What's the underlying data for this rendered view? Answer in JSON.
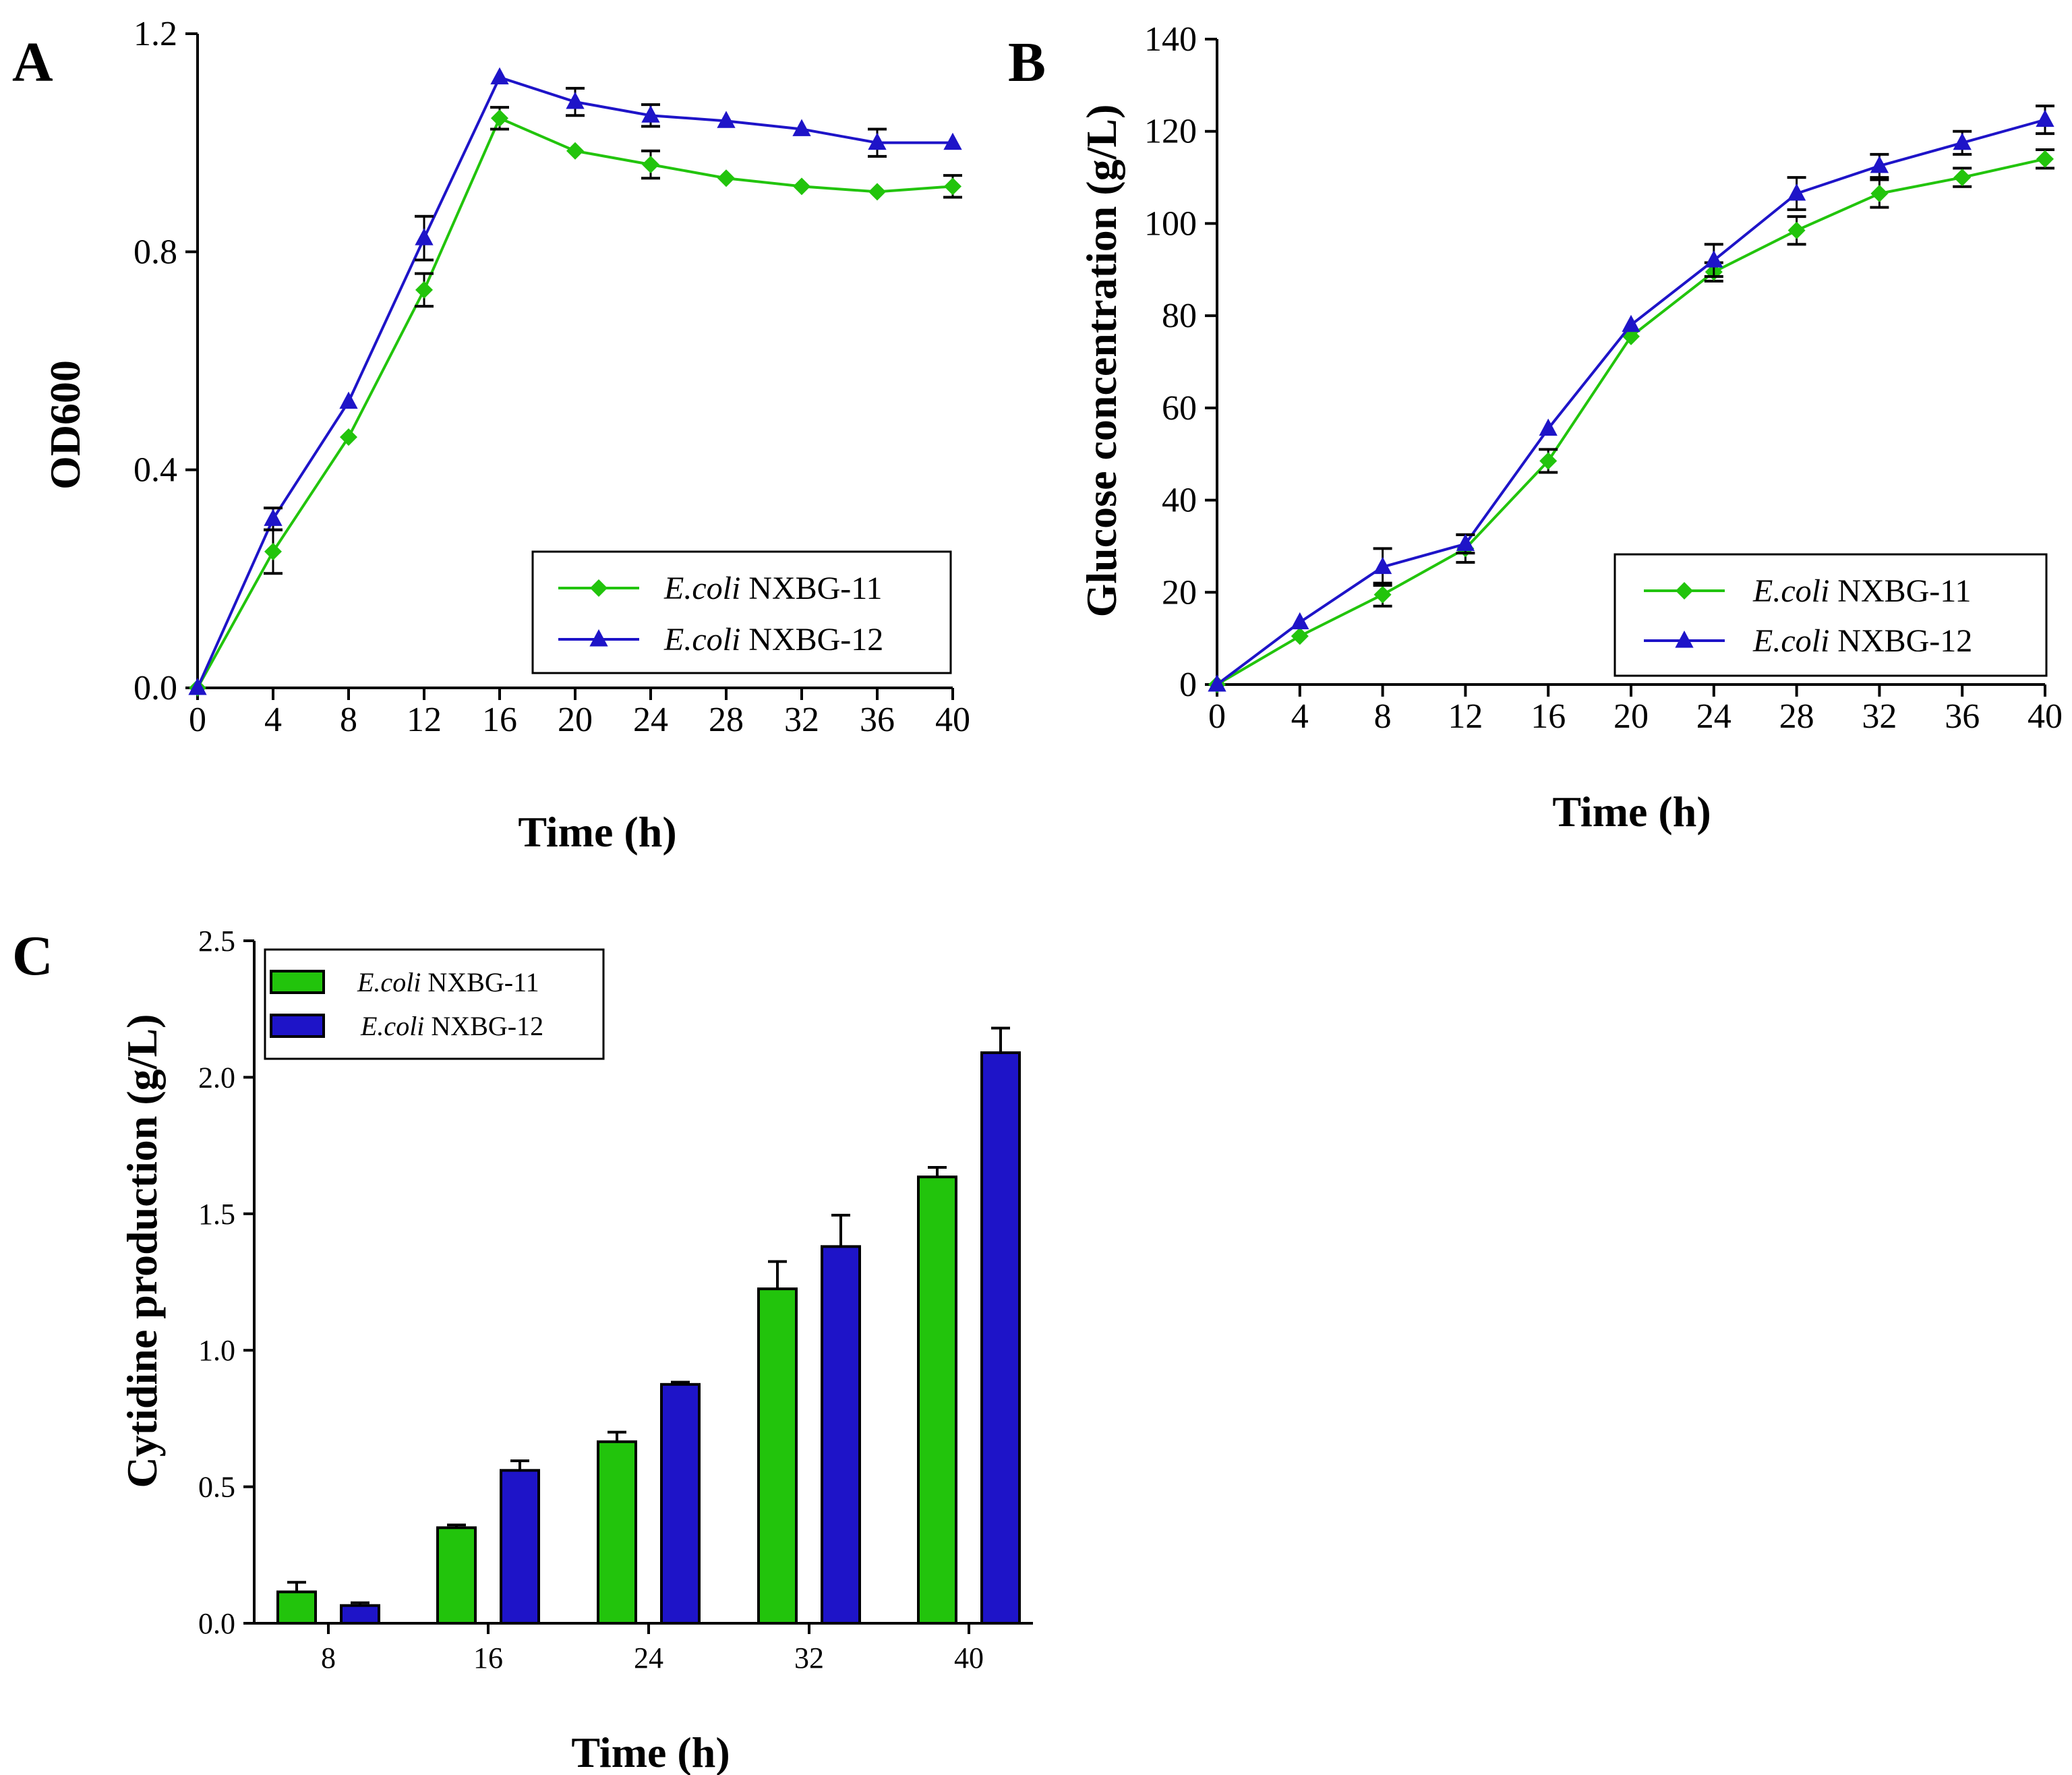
{
  "colors": {
    "green": "#22c40c",
    "green_dark": "#18a80a",
    "blue": "#1e14c8",
    "blue_dark": "#0b0a9e",
    "black": "#000000"
  },
  "panel_labels": [
    "A",
    "B",
    "C"
  ],
  "chart_data": [
    {
      "id": "A",
      "type": "line",
      "xlabel": "Time (h)",
      "ylabel": "OD600",
      "xlim": [
        0,
        40
      ],
      "ylim": [
        0,
        1.2
      ],
      "xticks": [
        0,
        4,
        8,
        12,
        16,
        20,
        24,
        28,
        32,
        36,
        40
      ],
      "xtick_labels": [
        "0",
        "4",
        "8",
        "12",
        "16",
        "20",
        "24",
        "28",
        "32",
        "36",
        "40"
      ],
      "yticks": [
        0,
        0.4,
        0.8,
        1.2
      ],
      "ytick_labels": [
        "0.0",
        "0.4",
        "0.8",
        "1.2"
      ],
      "grid": false,
      "legend_position": "bottom-right",
      "x": [
        0,
        4,
        8,
        12,
        16,
        20,
        24,
        28,
        32,
        36,
        40
      ],
      "series": [
        {
          "name": "E.coli NXBG-11",
          "name_italic": "E.coli",
          "name_rest": "NXBG-11",
          "color": "#22c40c",
          "marker": "diamond",
          "values": [
            0.0,
            0.25,
            0.46,
            0.73,
            1.045,
            0.985,
            0.96,
            0.935,
            0.92,
            0.91,
            0.92
          ],
          "errors": [
            0,
            0.04,
            0,
            0.03,
            0.02,
            0,
            0.025,
            0,
            0,
            0,
            0.02
          ]
        },
        {
          "name": "E.coli NXBG-12",
          "name_italic": "E.coli",
          "name_rest": "NXBG-12",
          "color": "#1e14c8",
          "marker": "triangle",
          "values": [
            0.0,
            0.31,
            0.525,
            0.825,
            1.12,
            1.075,
            1.05,
            1.04,
            1.025,
            1.0,
            1.0
          ],
          "errors": [
            0,
            0.02,
            0,
            0.04,
            0,
            0.025,
            0.02,
            0,
            0,
            0.025,
            0
          ]
        }
      ]
    },
    {
      "id": "B",
      "type": "line",
      "xlabel": "Time (h)",
      "ylabel": "Glucose concentration (g/L)",
      "xlim": [
        0,
        40
      ],
      "ylim": [
        0,
        140
      ],
      "xticks": [
        0,
        4,
        8,
        12,
        16,
        20,
        24,
        28,
        32,
        36,
        40
      ],
      "xtick_labels": [
        "0",
        "4",
        "8",
        "12",
        "16",
        "20",
        "24",
        "28",
        "32",
        "36",
        "40"
      ],
      "yticks": [
        0,
        20,
        40,
        60,
        80,
        100,
        120,
        140
      ],
      "ytick_labels": [
        "0",
        "20",
        "40",
        "60",
        "80",
        "100",
        "120",
        "140"
      ],
      "grid": false,
      "legend_position": "bottom-right",
      "x": [
        0,
        4,
        8,
        12,
        16,
        20,
        24,
        28,
        32,
        36,
        40
      ],
      "series": [
        {
          "name": "E.coli NXBG-11",
          "name_italic": "E.coli",
          "name_rest": "NXBG-11",
          "color": "#22c40c",
          "marker": "diamond",
          "values": [
            0,
            10.5,
            19.5,
            29.5,
            48.5,
            75.5,
            89.5,
            98.5,
            106.5,
            110.0,
            114.0
          ],
          "errors": [
            0,
            0,
            2.5,
            3,
            2.5,
            0,
            2,
            3,
            3,
            2,
            2
          ]
        },
        {
          "name": "E.coli NXBG-12",
          "name_italic": "E.coli",
          "name_rest": "NXBG-12",
          "color": "#1e14c8",
          "marker": "triangle",
          "values": [
            0,
            13.5,
            25.5,
            30.5,
            55.5,
            78.0,
            92.0,
            106.5,
            112.5,
            117.5,
            122.5
          ],
          "errors": [
            0,
            0,
            4,
            2,
            0,
            0,
            3.5,
            3.5,
            2.5,
            2.5,
            3
          ]
        }
      ]
    },
    {
      "id": "C",
      "type": "bar",
      "xlabel": "Time (h)",
      "ylabel": "Cytidine production (g/L)",
      "categories": [
        "8",
        "16",
        "24",
        "32",
        "40"
      ],
      "ylim": [
        0,
        2.5
      ],
      "yticks": [
        0,
        0.5,
        1.0,
        1.5,
        2.0,
        2.5
      ],
      "ytick_labels": [
        "0.0",
        "0.5",
        "1.0",
        "1.5",
        "2.0",
        "2.5"
      ],
      "grid": false,
      "legend_position": "top-left",
      "series": [
        {
          "name": "E.coli NXBG-11",
          "name_italic": "E.coli",
          "name_rest": "NXBG-11",
          "color": "#22c40c",
          "values": [
            0.115,
            0.35,
            0.665,
            1.225,
            1.635
          ],
          "errors": [
            0.035,
            0.01,
            0.035,
            0.1,
            0.035
          ]
        },
        {
          "name": "E.coli NXBG-12",
          "name_italic": "E.coli",
          "name_rest": "NXBG-12",
          "color": "#1e14c8",
          "values": [
            0.065,
            0.56,
            0.875,
            1.38,
            2.09
          ],
          "errors": [
            0.01,
            0.035,
            0.008,
            0.115,
            0.09
          ]
        }
      ]
    }
  ]
}
